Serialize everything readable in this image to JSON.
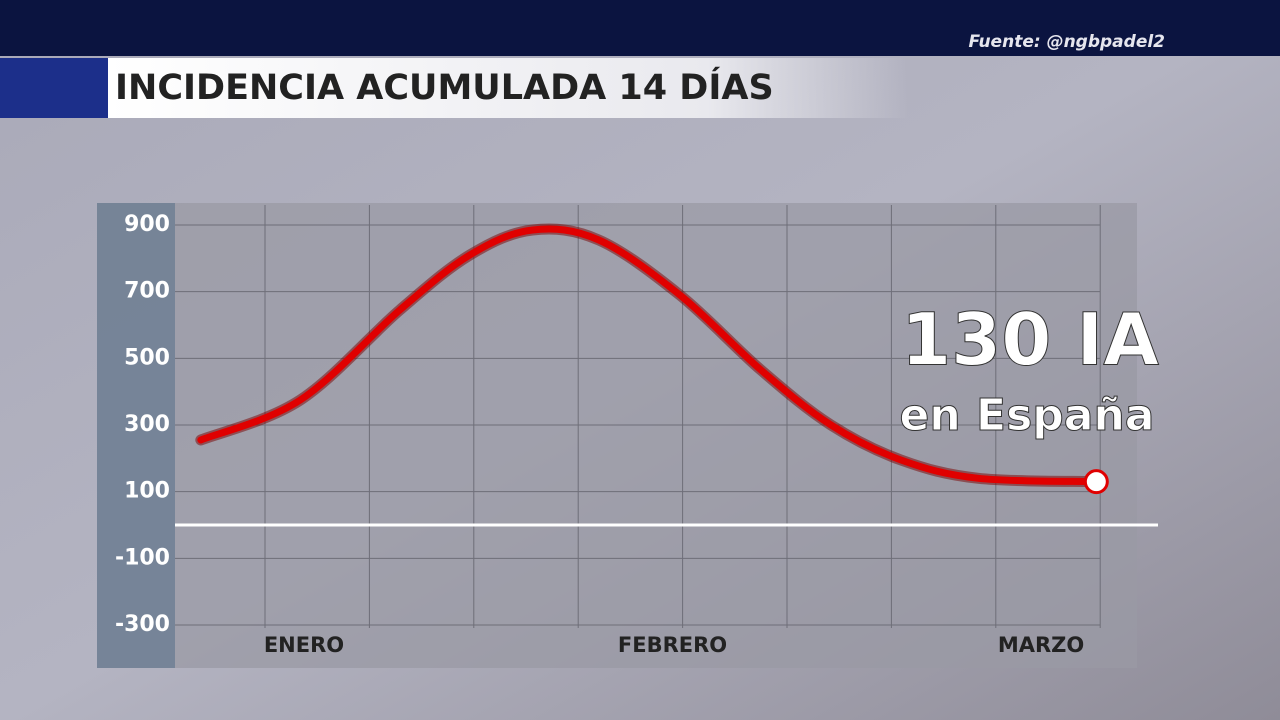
{
  "chart_data": {
    "type": "line",
    "title": "INCIDENCIA ACUMULADA 14 DÍAS",
    "source": "Fuente: @ngbpadel2",
    "annotation": "130 IA",
    "annotation_sub": "en España",
    "xlim": [
      -0.35,
      2.16
    ],
    "xticks": [
      {
        "value": 0,
        "label": "ENERO"
      },
      {
        "value": 1,
        "label": "FEBRERO"
      },
      {
        "value": 2,
        "label": "MARZO"
      }
    ],
    "ylim": [
      -300,
      960
    ],
    "yticks": [
      900,
      700,
      500,
      300,
      100,
      -100,
      -300
    ],
    "grid": true,
    "series": [
      {
        "color": "#e00000",
        "x": [
          -0.28,
          -0.01,
          0.26,
          0.45,
          0.62,
          0.8,
          1.02,
          1.24,
          1.43,
          1.62,
          1.83,
          2.15
        ],
        "values": [
          255,
          375,
          645,
          810,
          885,
          855,
          690,
          465,
          300,
          195,
          140,
          130
        ]
      }
    ]
  }
}
